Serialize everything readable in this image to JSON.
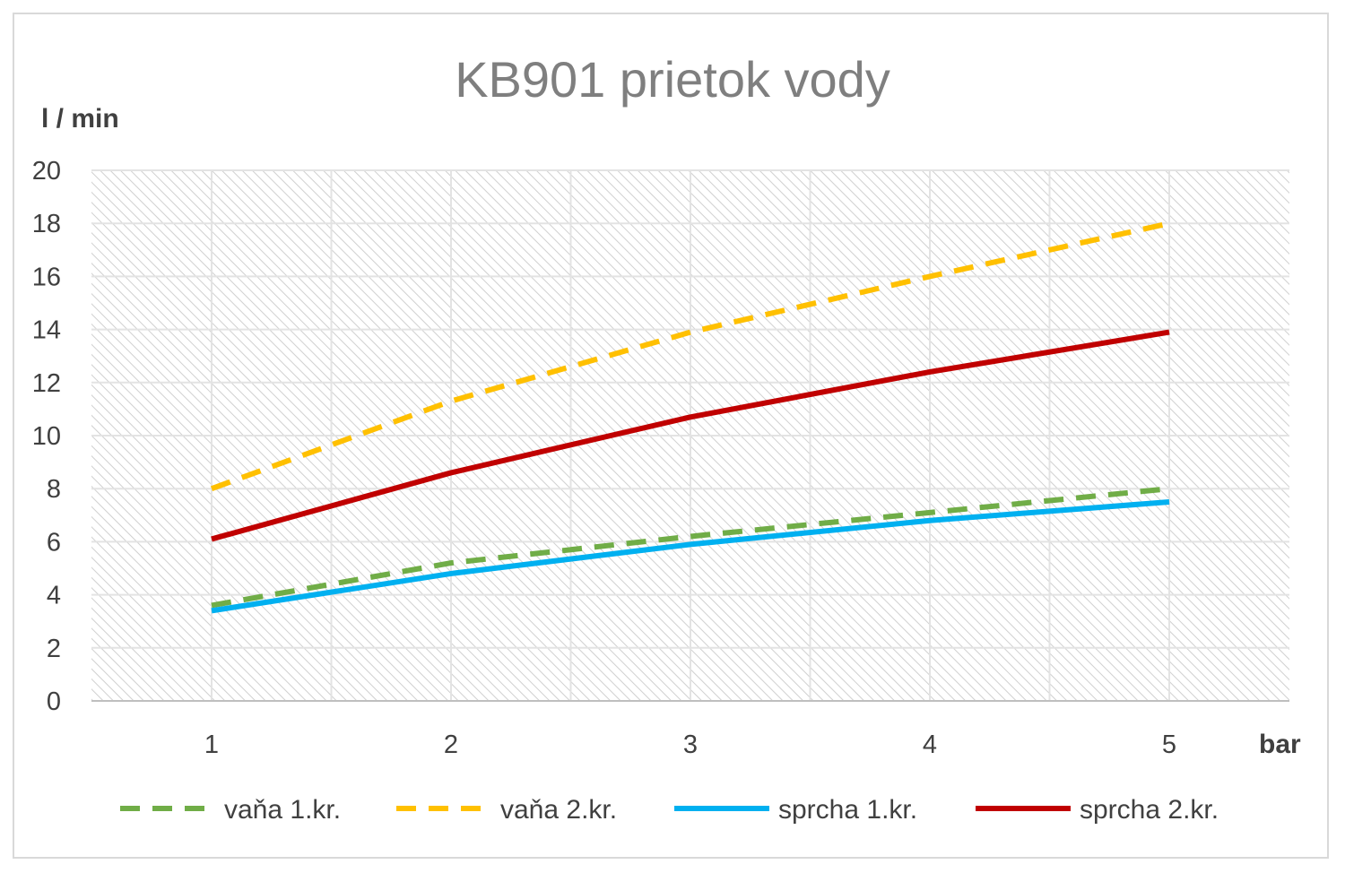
{
  "chart_data": {
    "type": "line",
    "title": "KB901 prietok vody",
    "ylabel": "l / min",
    "xlabel": "bar",
    "x": [
      1,
      2,
      3,
      4,
      5
    ],
    "y_ticks": [
      0,
      2,
      4,
      6,
      8,
      10,
      12,
      14,
      16,
      18,
      20
    ],
    "ylim": [
      0,
      20
    ],
    "grid": true,
    "legend_position": "bottom",
    "series": [
      {
        "name": "vaňa 1.kr.",
        "values": [
          3.6,
          5.2,
          6.2,
          7.1,
          8.0
        ],
        "color": "#70ad47",
        "dashed": true
      },
      {
        "name": "vaňa 2.kr.",
        "values": [
          8.0,
          11.3,
          13.9,
          16.0,
          18.0
        ],
        "color": "#ffc000",
        "dashed": true
      },
      {
        "name": "sprcha 1.kr.",
        "values": [
          3.4,
          4.8,
          5.9,
          6.8,
          7.5
        ],
        "color": "#00b0f0",
        "dashed": false
      },
      {
        "name": "sprcha 2.kr.",
        "values": [
          6.1,
          8.6,
          10.7,
          12.4,
          13.9
        ],
        "color": "#c00000",
        "dashed": false
      }
    ]
  }
}
